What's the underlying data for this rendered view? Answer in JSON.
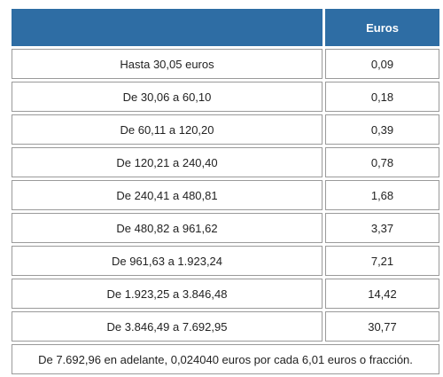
{
  "header": {
    "range_label": "",
    "euros_label": "Euros"
  },
  "rows": [
    {
      "range": "Hasta 30,05 euros",
      "euros": "0,09"
    },
    {
      "range": "De 30,06 a 60,10",
      "euros": "0,18"
    },
    {
      "range": "De 60,11 a 120,20",
      "euros": "0,39"
    },
    {
      "range": "De 120,21 a 240,40",
      "euros": "0,78"
    },
    {
      "range": "De 240,41 a 480,81",
      "euros": "1,68"
    },
    {
      "range": "De 480,82 a 961,62",
      "euros": "3,37"
    },
    {
      "range": "De 961,63 a 1.923,24",
      "euros": "7,21"
    },
    {
      "range": "De 1.923,25 a 3.846,48",
      "euros": "14,42"
    },
    {
      "range": "De 3.846,49 a 7.692,95",
      "euros": "30,77"
    }
  ],
  "footer": "De 7.692,96 en adelante, 0,024040 euros por cada 6,01 euros o fracción.",
  "colors": {
    "header_bg": "#2e6da4",
    "header_text": "#ffffff",
    "border": "#9a9a9a"
  }
}
